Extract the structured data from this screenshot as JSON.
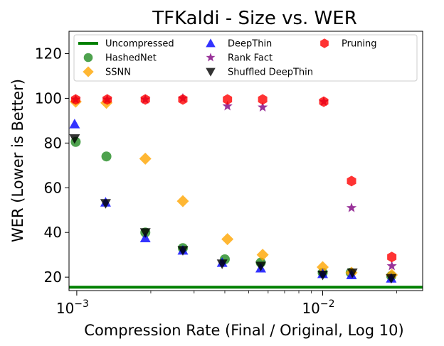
{
  "chart_data": {
    "type": "scatter",
    "title": "TFKaldi - Size vs. WER",
    "xlabel": "Compression Rate (Final / Original, Log 10)",
    "ylabel": "WER (Lower is Better)",
    "xscale": "log",
    "xlim": [
      0.00093,
      0.0255
    ],
    "ylim": [
      14,
      130
    ],
    "x_ticks": [
      {
        "value": 0.001,
        "base": "10",
        "exp": "−3"
      },
      {
        "value": 0.01,
        "base": "10",
        "exp": "−2"
      }
    ],
    "y_ticks": [
      20,
      40,
      60,
      80,
      100,
      120
    ],
    "grid": false,
    "legend_position": "top",
    "baseline": {
      "name": "Uncompressed",
      "value": 15.5,
      "color": "#008000"
    },
    "series": [
      {
        "name": "HashedNet",
        "marker": "circle",
        "color": "#228B22",
        "points": [
          [
            0.00099,
            80.5
          ],
          [
            0.00132,
            74
          ],
          [
            0.0019,
            40
          ],
          [
            0.0027,
            33
          ],
          [
            0.004,
            28
          ],
          [
            0.0056,
            26.5
          ],
          [
            0.01,
            22
          ],
          [
            0.013,
            22
          ],
          [
            0.019,
            20.5
          ]
        ]
      },
      {
        "name": "SSNN",
        "marker": "diamond",
        "color": "#FFA500",
        "points": [
          [
            0.00099,
            98.5
          ],
          [
            0.00132,
            98
          ],
          [
            0.0019,
            73
          ],
          [
            0.0027,
            54
          ],
          [
            0.0041,
            37
          ],
          [
            0.0057,
            30
          ],
          [
            0.01,
            24.5
          ],
          [
            0.0131,
            22
          ],
          [
            0.0191,
            21
          ]
        ]
      },
      {
        "name": "DeepThin",
        "marker": "triangle-up",
        "color": "#0000FF",
        "points": [
          [
            0.00098,
            88.5
          ],
          [
            0.00131,
            53.5
          ],
          [
            0.0019,
            37.5
          ],
          [
            0.0027,
            32
          ],
          [
            0.0039,
            26.5
          ],
          [
            0.0056,
            24
          ],
          [
            0.01,
            21.5
          ],
          [
            0.0131,
            21
          ],
          [
            0.019,
            19.5
          ]
        ]
      },
      {
        "name": "Rank Fact",
        "marker": "star",
        "color": "#800080",
        "points": [
          [
            0.00099,
            99.5
          ],
          [
            0.00133,
            99.5
          ],
          [
            0.0019,
            99.5
          ],
          [
            0.0027,
            100
          ],
          [
            0.0041,
            96.5
          ],
          [
            0.0057,
            96
          ],
          [
            0.0101,
            98.5
          ],
          [
            0.0131,
            51
          ],
          [
            0.0191,
            25
          ]
        ]
      },
      {
        "name": "Shuffled DeepThin",
        "marker": "triangle-down",
        "color": "#000000",
        "points": [
          [
            0.00098,
            82
          ],
          [
            0.00131,
            53
          ],
          [
            0.0019,
            40
          ],
          [
            0.0027,
            32
          ],
          [
            0.0039,
            26
          ],
          [
            0.0056,
            25
          ],
          [
            0.01,
            21
          ],
          [
            0.0132,
            22
          ],
          [
            0.019,
            19.5
          ]
        ]
      },
      {
        "name": "Pruning",
        "marker": "hexagon",
        "color": "#FF0000",
        "points": [
          [
            0.00099,
            99.5
          ],
          [
            0.00133,
            99.5
          ],
          [
            0.0019,
            99.5
          ],
          [
            0.0027,
            99.5
          ],
          [
            0.0041,
            99.5
          ],
          [
            0.0057,
            99.5
          ],
          [
            0.0101,
            98.5
          ],
          [
            0.0131,
            63
          ],
          [
            0.0191,
            29
          ]
        ]
      }
    ],
    "legend_order": [
      "Uncompressed",
      "HashedNet",
      "SSNN",
      "DeepThin",
      "Rank Fact",
      "Shuffled DeepThin",
      "Pruning"
    ]
  }
}
